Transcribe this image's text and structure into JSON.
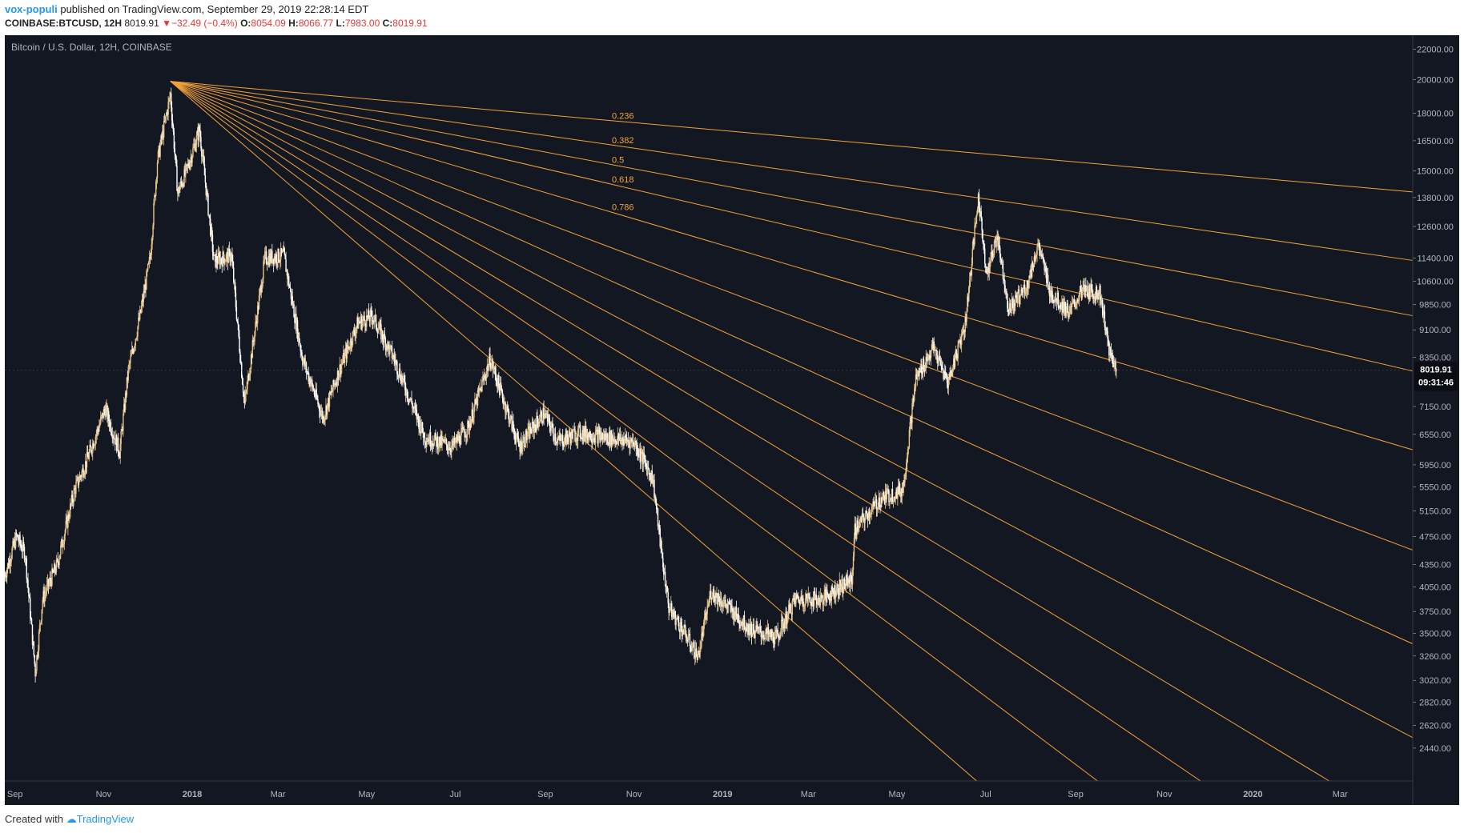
{
  "header": {
    "author": "vox-populi",
    "published_text": "published on TradingView.com, September 29, 2019 22:28:14 EDT",
    "symbol": "COINBASE:BTCUSD, 12H",
    "last": "8019.91",
    "change_arrow": "▼",
    "change": "−32.49 (−0.4%)",
    "o_label": "O:",
    "o_value": "8054.09",
    "h_label": "H:",
    "h_value": "8066.77",
    "l_label": "L:",
    "l_value": "7983.00",
    "c_label": "C:",
    "c_value": "8019.91"
  },
  "footer": {
    "created_with": "Created with",
    "brand": "TradingView"
  },
  "colors": {
    "background": "#131722",
    "fib_line": "#f3a33a",
    "candle": "#e8c48a",
    "candle_light": "#ffffff",
    "axis_text": "#b2b5be",
    "price_tag_bg": "#0a0d14"
  },
  "chart_data": {
    "type": "line",
    "title": "Bitcoin / U.S. Dollar, 12H, COINBASE",
    "y_scale": "log",
    "ylim": [
      2200,
      23000
    ],
    "xlim": [
      "2017-08-25",
      "2020-04-20"
    ],
    "x_ticks": [
      {
        "label": "Sep",
        "date": "2017-09-01"
      },
      {
        "label": "Nov",
        "date": "2017-11-01"
      },
      {
        "label": "2018",
        "date": "2018-01-01"
      },
      {
        "label": "Mar",
        "date": "2018-03-01"
      },
      {
        "label": "May",
        "date": "2018-05-01"
      },
      {
        "label": "Jul",
        "date": "2018-07-01"
      },
      {
        "label": "Sep",
        "date": "2018-09-01"
      },
      {
        "label": "Nov",
        "date": "2018-11-01"
      },
      {
        "label": "2019",
        "date": "2019-01-01"
      },
      {
        "label": "Mar",
        "date": "2019-03-01"
      },
      {
        "label": "May",
        "date": "2019-05-01"
      },
      {
        "label": "Jul",
        "date": "2019-07-01"
      },
      {
        "label": "Sep",
        "date": "2019-09-01"
      },
      {
        "label": "Nov",
        "date": "2019-11-01"
      },
      {
        "label": "2020",
        "date": "2020-01-01"
      },
      {
        "label": "Mar",
        "date": "2020-03-01"
      }
    ],
    "y_ticks": [
      "22000.00",
      "20000.00",
      "18000.00",
      "16500.00",
      "15000.00",
      "13800.00",
      "12600.00",
      "11400.00",
      "10600.00",
      "9850.00",
      "9100.00",
      "8350.00",
      "7150.00",
      "6550.00",
      "5950.00",
      "5550.00",
      "5150.00",
      "4750.00",
      "4350.00",
      "4050.00",
      "3750.00",
      "3500.00",
      "3260.00",
      "3020.00",
      "2820.00",
      "2620.00",
      "2440.00"
    ],
    "last_price_label": "8019.91",
    "countdown_label": "09:31:46",
    "series": [
      {
        "x": [
          "2017-08-25",
          "2017-09-02",
          "2017-09-08",
          "2017-09-15",
          "2017-09-20",
          "2017-09-30",
          "2017-10-12",
          "2017-10-20",
          "2017-11-02",
          "2017-11-12",
          "2017-11-18",
          "2017-11-26",
          "2017-12-03",
          "2017-12-08",
          "2017-12-12",
          "2017-12-17",
          "2017-12-22",
          "2017-12-28",
          "2018-01-06",
          "2018-01-16",
          "2018-01-28",
          "2018-02-06",
          "2018-02-20",
          "2018-03-05",
          "2018-03-18",
          "2018-04-01",
          "2018-04-12",
          "2018-04-25",
          "2018-05-05",
          "2018-05-20",
          "2018-06-10",
          "2018-06-29",
          "2018-07-10",
          "2018-07-25",
          "2018-08-14",
          "2018-08-31",
          "2018-09-10",
          "2018-09-25",
          "2018-10-10",
          "2018-11-01",
          "2018-11-14",
          "2018-11-20",
          "2018-11-25",
          "2018-12-06",
          "2018-12-15",
          "2018-12-24",
          "2019-01-05",
          "2019-01-20",
          "2019-02-07",
          "2019-02-20",
          "2019-03-10",
          "2019-03-31",
          "2019-04-02",
          "2019-04-20",
          "2019-05-05",
          "2019-05-14",
          "2019-05-26",
          "2019-06-05",
          "2019-06-17",
          "2019-06-26",
          "2019-07-02",
          "2019-07-09",
          "2019-07-17",
          "2019-07-30",
          "2019-08-06",
          "2019-08-15",
          "2019-08-28",
          "2019-09-05",
          "2019-09-18",
          "2019-09-24",
          "2019-09-29"
        ],
        "values": [
          4200,
          4750,
          4500,
          3100,
          3900,
          4350,
          5500,
          6000,
          7100,
          6200,
          8000,
          9500,
          11400,
          15500,
          17000,
          19100,
          14000,
          15000,
          17100,
          11300,
          11500,
          7200,
          11400,
          11500,
          8300,
          6900,
          8000,
          9300,
          9500,
          8300,
          6500,
          6300,
          6700,
          8300,
          6300,
          7000,
          6400,
          6600,
          6500,
          6400,
          5700,
          4500,
          3800,
          3500,
          3250,
          4000,
          3800,
          3550,
          3450,
          3900,
          3900,
          4150,
          4850,
          5350,
          5500,
          7800,
          8600,
          7700,
          9300,
          13800,
          10800,
          12300,
          9700,
          10500,
          11900,
          10200,
          9600,
          10300,
          10200,
          8500,
          8020
        ]
      }
    ],
    "fib_fan": {
      "origin": {
        "date": "2017-12-17",
        "price": 19891
      },
      "levels": [
        "0.236",
        "0.382",
        "0.5",
        "0.618",
        "0.786"
      ]
    }
  }
}
